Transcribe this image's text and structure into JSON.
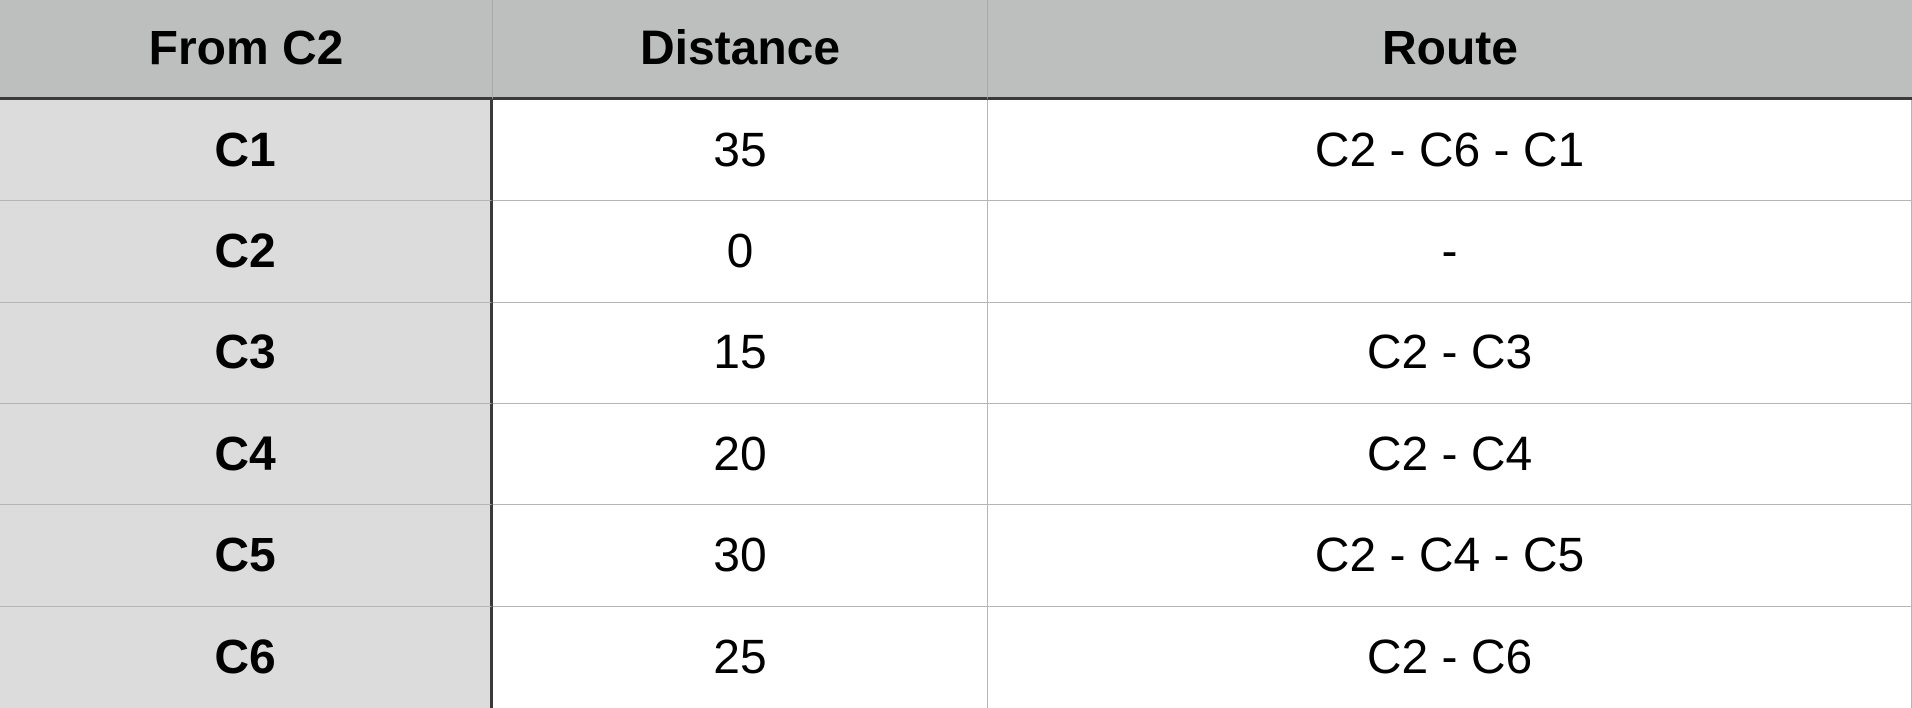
{
  "header": {
    "col1": "From C2",
    "col2": "Distance",
    "col3": "Route"
  },
  "rows": [
    {
      "from": "C1",
      "distance": "35",
      "route": "C2 - C6 - C1"
    },
    {
      "from": "C2",
      "distance": "0",
      "route": "-"
    },
    {
      "from": "C3",
      "distance": "15",
      "route": "C2 - C3"
    },
    {
      "from": "C4",
      "distance": "20",
      "route": "C2 - C4"
    },
    {
      "from": "C5",
      "distance": "30",
      "route": "C2 - C4 - C5"
    },
    {
      "from": "C6",
      "distance": "25",
      "route": "C2 - C6"
    }
  ]
}
